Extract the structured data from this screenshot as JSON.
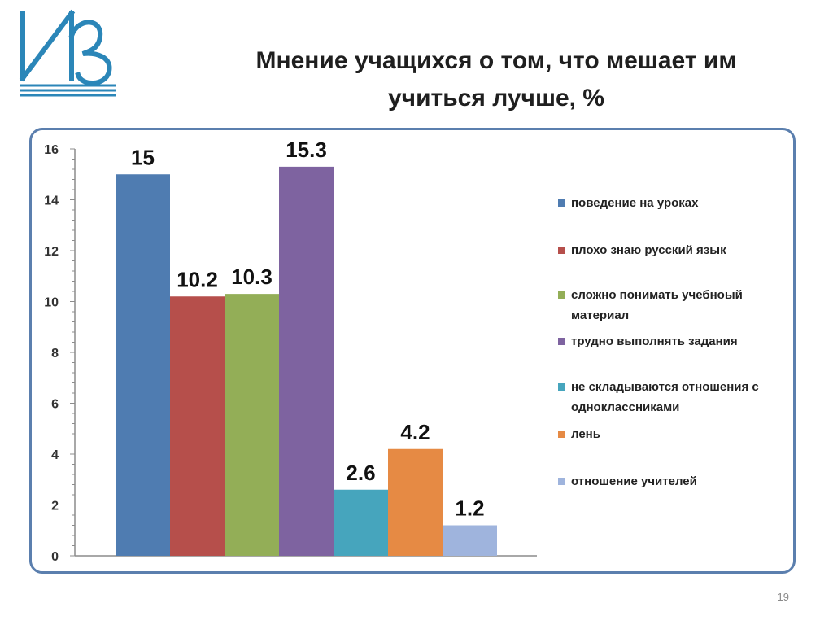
{
  "title": {
    "line1": "Мнение учащихся о том, что мешает им",
    "line2": "учиться лучше, %"
  },
  "page_number": "19",
  "colors": {
    "frame": "#5b7fae",
    "logo": "#2b86b8"
  },
  "chart_data": {
    "type": "bar",
    "categories": [
      "поведение на уроках",
      "плохо знаю русский язык",
      "сложно понимать учебноый материал",
      "трудно выполнять задания",
      "не складываются отношения с одноклассниками",
      "лень",
      "отношение учителей"
    ],
    "values": [
      15,
      10.2,
      10.3,
      15.3,
      2.6,
      4.2,
      1.2
    ],
    "value_labels": [
      "15",
      "10.2",
      "10.3",
      "15.3",
      "2.6",
      "4.2",
      "1.2"
    ],
    "colors": [
      "#4f7cb1",
      "#b64f4b",
      "#93ae57",
      "#7e63a0",
      "#46a5bd",
      "#e68a44",
      "#9fb4dd"
    ],
    "ylim": [
      0,
      16
    ],
    "yticks": [
      "0",
      "2",
      "4",
      "6",
      "8",
      "10",
      "12",
      "14",
      "16"
    ],
    "minor_ticks_per_major": 5,
    "legend_position": "right",
    "grid": false
  }
}
